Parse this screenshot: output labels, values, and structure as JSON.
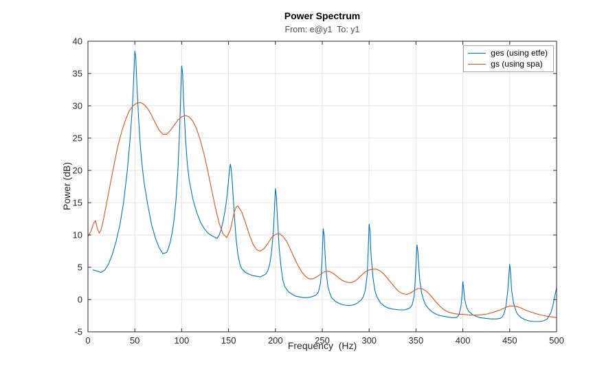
{
  "chart_data": {
    "type": "line",
    "title": "Power Spectrum",
    "subtitle": "From: e@y1  To: y1",
    "xlabel": "Frequency  (Hz)",
    "ylabel": "Power (dB)",
    "xlim": [
      0,
      500
    ],
    "ylim": [
      -5,
      40
    ],
    "xticks": [
      0,
      50,
      100,
      150,
      200,
      250,
      300,
      350,
      400,
      450,
      500
    ],
    "yticks": [
      -5,
      0,
      5,
      10,
      15,
      20,
      25,
      30,
      35,
      40
    ],
    "grid": true,
    "grid_color": "#e3e3e3",
    "axis_color": "#262626",
    "legend_position": "top-right",
    "series": [
      {
        "name": "ges (using etfe)",
        "color": "#0072BD",
        "x": [
          5,
          10,
          14,
          18,
          22,
          26,
          30,
          34,
          38,
          42,
          45,
          47,
          48,
          49,
          50,
          51,
          52,
          54,
          56,
          58,
          60,
          64,
          68,
          72,
          76,
          80,
          84,
          86,
          88,
          90,
          92,
          94,
          96,
          98,
          99,
          100,
          101,
          102,
          104,
          106,
          108,
          112,
          116,
          120,
          124,
          128,
          132,
          136,
          138,
          140,
          142,
          144,
          146,
          148,
          150,
          151,
          152,
          153,
          154,
          156,
          158,
          160,
          162,
          164,
          168,
          172,
          176,
          180,
          184,
          188,
          190,
          192,
          194,
          196,
          198,
          199,
          200,
          201,
          202,
          204,
          206,
          208,
          210,
          214,
          218,
          222,
          226,
          230,
          234,
          238,
          242,
          244,
          246,
          248,
          249,
          250,
          251,
          252,
          253,
          254,
          256,
          258,
          260,
          264,
          268,
          272,
          276,
          280,
          284,
          288,
          292,
          294,
          296,
          298,
          299,
          300,
          301,
          302,
          304,
          306,
          308,
          312,
          316,
          320,
          326,
          332,
          338,
          342,
          344,
          346,
          348,
          349,
          350,
          351,
          352,
          353,
          354,
          356,
          358,
          360,
          364,
          368,
          372,
          376,
          380,
          384,
          388,
          392,
          394,
          396,
          398,
          399,
          400,
          401,
          402,
          404,
          406,
          410,
          414,
          418,
          424,
          430,
          436,
          440,
          442,
          444,
          446,
          448,
          449,
          450,
          451,
          452,
          454,
          456,
          458,
          462,
          466,
          470,
          476,
          482,
          486,
          490,
          494,
          496,
          498,
          500
        ],
        "y": [
          4.6,
          4.4,
          4.2,
          4.6,
          5.5,
          7.0,
          9.0,
          11.5,
          15.0,
          20.0,
          25.0,
          29.0,
          31.5,
          35.0,
          38.5,
          37.5,
          34.0,
          28.0,
          23.5,
          20.5,
          18.0,
          14.5,
          11.5,
          9.5,
          8.0,
          7.1,
          7.3,
          8.0,
          9.0,
          10.5,
          12.5,
          15.5,
          20.0,
          27.0,
          32.0,
          36.2,
          35.0,
          31.0,
          25.0,
          21.0,
          18.5,
          15.5,
          13.5,
          12.0,
          11.0,
          10.3,
          9.9,
          9.6,
          9.5,
          10.0,
          10.8,
          12.0,
          13.5,
          15.5,
          18.5,
          20.0,
          21.0,
          20.0,
          18.0,
          13.5,
          9.5,
          7.0,
          5.5,
          4.8,
          4.2,
          3.9,
          3.7,
          3.6,
          3.5,
          3.8,
          4.0,
          4.5,
          5.5,
          7.5,
          11.0,
          14.0,
          17.2,
          16.0,
          13.0,
          8.0,
          5.0,
          3.0,
          2.0,
          1.2,
          0.8,
          0.5,
          0.4,
          0.3,
          0.3,
          0.4,
          0.6,
          0.8,
          1.2,
          2.5,
          4.0,
          7.0,
          11.0,
          10.0,
          7.0,
          4.5,
          2.0,
          1.0,
          0.3,
          -0.3,
          -0.6,
          -0.8,
          -0.9,
          -0.9,
          -0.8,
          -0.5,
          0.0,
          0.5,
          1.5,
          4.0,
          7.5,
          11.7,
          10.5,
          7.0,
          3.5,
          1.5,
          0.5,
          -0.5,
          -1.0,
          -1.3,
          -1.5,
          -1.6,
          -1.6,
          -1.4,
          -1.2,
          -0.8,
          0.5,
          2.5,
          5.5,
          8.5,
          7.5,
          5.0,
          3.0,
          1.0,
          0.0,
          -0.8,
          -1.5,
          -2.0,
          -2.3,
          -2.5,
          -2.6,
          -2.7,
          -2.8,
          -2.8,
          -2.7,
          -2.3,
          -1.0,
          0.5,
          2.8,
          1.5,
          0.0,
          -1.2,
          -1.8,
          -2.3,
          -2.6,
          -2.8,
          -2.9,
          -3.0,
          -3.0,
          -2.9,
          -2.7,
          -2.2,
          -1.0,
          1.5,
          3.5,
          5.5,
          4.0,
          1.5,
          -0.5,
          -1.5,
          -2.2,
          -2.8,
          -3.1,
          -3.3,
          -3.4,
          -3.4,
          -3.3,
          -3.0,
          -2.0,
          -1.0,
          0.5,
          1.8
        ]
      },
      {
        "name": "gs (using spa)",
        "color": "#D95319",
        "x": [
          0,
          3,
          6,
          8,
          10,
          12,
          14,
          16,
          18,
          20,
          24,
          28,
          32,
          36,
          40,
          44,
          48,
          52,
          56,
          60,
          64,
          68,
          72,
          76,
          80,
          84,
          88,
          92,
          96,
          100,
          104,
          108,
          112,
          116,
          120,
          124,
          128,
          132,
          136,
          140,
          144,
          148,
          152,
          156,
          158,
          160,
          164,
          168,
          172,
          176,
          180,
          184,
          188,
          192,
          196,
          200,
          204,
          208,
          212,
          216,
          220,
          224,
          228,
          232,
          236,
          240,
          244,
          248,
          252,
          256,
          260,
          264,
          268,
          272,
          276,
          280,
          284,
          288,
          292,
          296,
          300,
          304,
          308,
          312,
          316,
          320,
          324,
          328,
          332,
          336,
          340,
          344,
          348,
          352,
          356,
          360,
          364,
          368,
          372,
          376,
          380,
          384,
          388,
          392,
          396,
          400,
          408,
          416,
          424,
          432,
          440,
          446,
          450,
          454,
          458,
          462,
          466,
          472,
          478,
          484,
          490,
          496,
          500
        ],
        "y": [
          9.8,
          10.5,
          11.8,
          12.2,
          11.0,
          10.3,
          10.8,
          12.0,
          13.5,
          15.0,
          18.0,
          21.0,
          23.8,
          26.0,
          27.8,
          29.2,
          30.0,
          30.4,
          30.5,
          30.2,
          29.5,
          28.5,
          27.3,
          26.2,
          25.6,
          25.6,
          26.2,
          27.0,
          27.8,
          28.3,
          28.5,
          28.3,
          27.6,
          26.4,
          24.6,
          22.4,
          19.8,
          17.0,
          14.2,
          11.8,
          10.2,
          9.6,
          10.8,
          13.5,
          14.3,
          14.5,
          13.6,
          11.9,
          10.1,
          8.6,
          7.7,
          7.5,
          7.9,
          8.7,
          9.6,
          10.1,
          10.2,
          9.8,
          9.0,
          7.8,
          6.5,
          5.3,
          4.3,
          3.6,
          3.2,
          3.2,
          3.5,
          3.9,
          4.3,
          4.4,
          4.2,
          3.8,
          3.3,
          2.9,
          2.7,
          2.6,
          2.8,
          3.2,
          3.8,
          4.3,
          4.6,
          4.7,
          4.7,
          4.4,
          3.9,
          3.2,
          2.5,
          1.8,
          1.2,
          0.9,
          0.8,
          1.0,
          1.4,
          1.7,
          1.7,
          1.4,
          0.9,
          0.2,
          -0.5,
          -1.1,
          -1.6,
          -1.9,
          -2.1,
          -2.2,
          -2.3,
          -2.3,
          -2.4,
          -2.4,
          -2.3,
          -2.0,
          -1.6,
          -1.2,
          -1.0,
          -1.0,
          -1.1,
          -1.3,
          -1.6,
          -1.9,
          -2.2,
          -2.4,
          -2.6,
          -2.7,
          -2.8
        ]
      }
    ]
  }
}
